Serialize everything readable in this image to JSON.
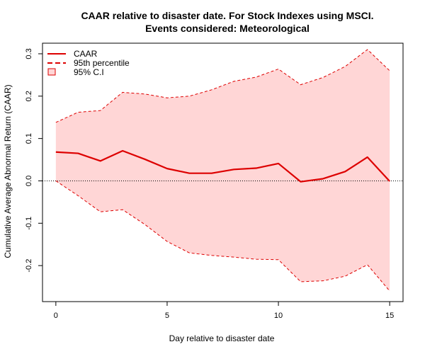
{
  "chart_data": {
    "type": "line",
    "title_lines": [
      "CAAR relative to disaster date. For Stock Indexes using MSCI.",
      "Events considered: Meteorological"
    ],
    "xlabel": "Day relative to disaster date",
    "ylabel": "Cumulative Average Abnormal Return (CAAR)",
    "xlim": [
      -0.6,
      15.6
    ],
    "ylim": [
      -0.285,
      0.325
    ],
    "x_ticks": [
      0,
      5,
      10,
      15
    ],
    "x_tick_labels": [
      "0",
      "5",
      "10",
      "15"
    ],
    "y_ticks": [
      -0.2,
      -0.1,
      0,
      0.1,
      0.2,
      0.3
    ],
    "y_tick_labels": [
      "-0.2",
      "-0.1",
      "0.0",
      "0.1",
      "0.2",
      "0.3"
    ],
    "grid": false,
    "reference_line": {
      "y": 0,
      "style": "dotted",
      "color": "#000000"
    },
    "x": [
      0,
      1,
      2,
      3,
      4,
      5,
      6,
      7,
      8,
      9,
      10,
      11,
      12,
      13,
      14,
      15
    ],
    "series": [
      {
        "name": "CAAR",
        "style": "solid",
        "color": "#dd0000",
        "values": [
          0.068,
          0.065,
          0.047,
          0.071,
          0.051,
          0.029,
          0.018,
          0.018,
          0.027,
          0.03,
          0.041,
          -0.002,
          0.005,
          0.022,
          0.056,
          -0.001
        ]
      },
      {
        "name": "95th percentile",
        "role": "upper",
        "style": "dashed",
        "color": "#dd0000",
        "values": [
          0.138,
          0.162,
          0.166,
          0.209,
          0.205,
          0.196,
          0.2,
          0.215,
          0.235,
          0.245,
          0.264,
          0.227,
          0.244,
          0.27,
          0.31,
          0.26
        ]
      },
      {
        "name": "95th percentile",
        "role": "lower",
        "style": "dashed",
        "color": "#dd0000",
        "values": [
          0.0,
          -0.035,
          -0.073,
          -0.068,
          -0.103,
          -0.143,
          -0.17,
          -0.176,
          -0.18,
          -0.185,
          -0.186,
          -0.238,
          -0.236,
          -0.225,
          -0.198,
          -0.26
        ]
      }
    ],
    "ci_band": {
      "name": "95% C.I",
      "fill": "#ffd6d6"
    },
    "legend": {
      "placement": "top-left",
      "entries": [
        "CAAR",
        "95th percentile",
        "95% C.I"
      ]
    }
  }
}
